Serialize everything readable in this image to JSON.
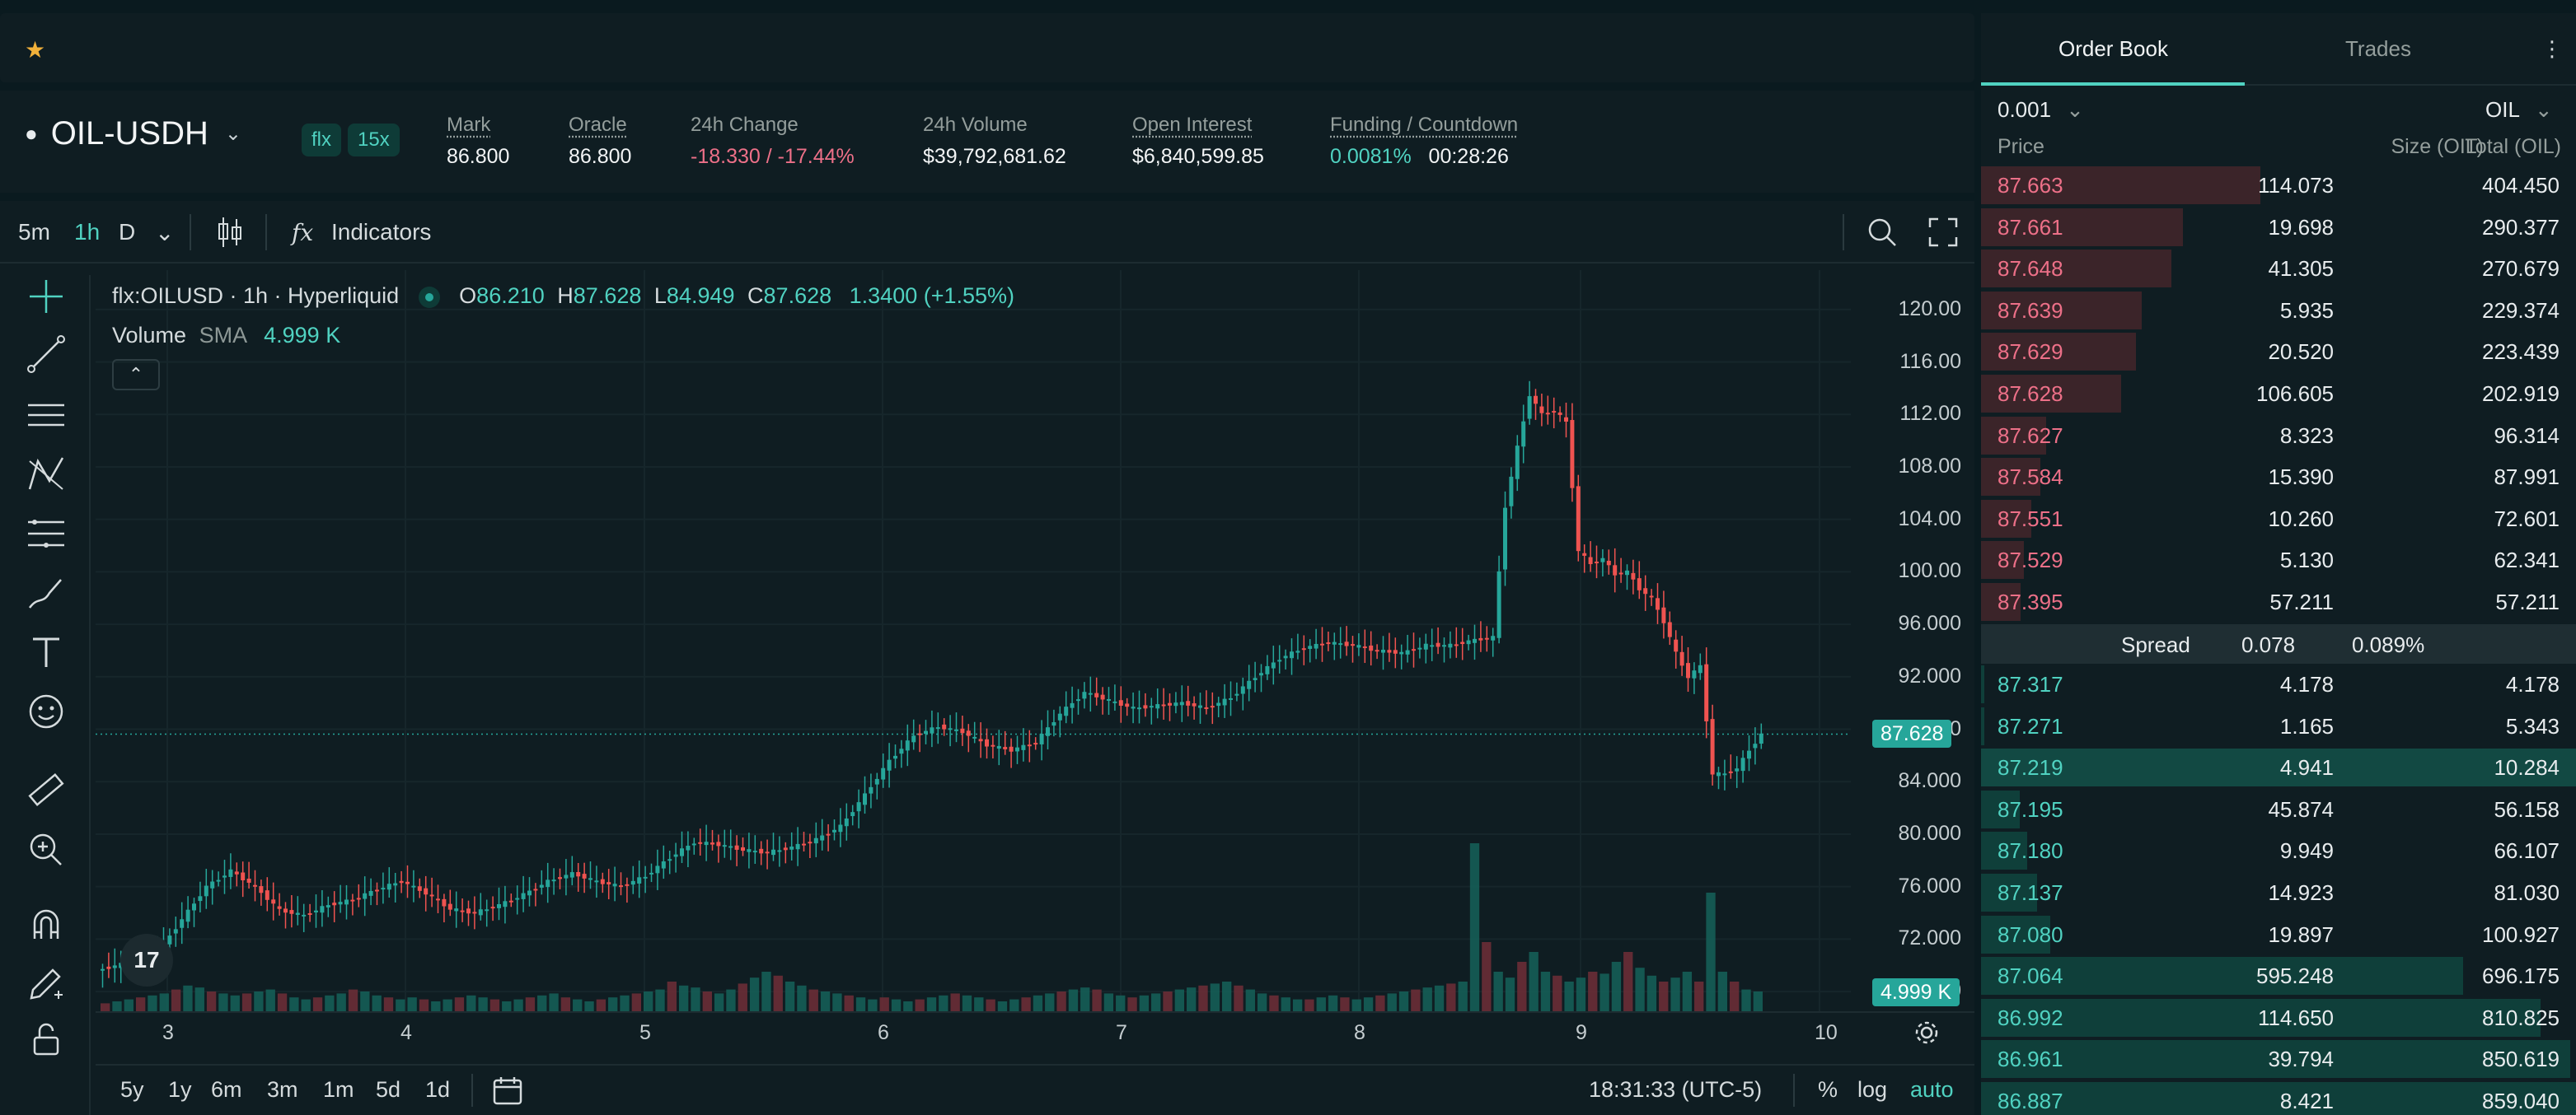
{
  "topbar": {
    "favorite_icon": "star-icon"
  },
  "market": {
    "pair": "OIL-USDH",
    "badges": [
      "flx",
      "15x"
    ],
    "stats": [
      {
        "label": "Mark",
        "value": "86.800",
        "underline": true
      },
      {
        "label": "Oracle",
        "value": "86.800",
        "underline": true
      },
      {
        "label": "24h Change",
        "value": "-18.330 / -17.44%",
        "underline": false
      },
      {
        "label": "24h Volume",
        "value": "$39,792,681.62",
        "underline": false
      },
      {
        "label": "Open Interest",
        "value": "$6,840,599.85",
        "underline": true
      },
      {
        "label": "Funding / Countdown",
        "value": "0.0081%",
        "value2": "00:28:26",
        "underline": true
      }
    ]
  },
  "chart_toolbar": {
    "intervals": [
      "5m",
      "1h",
      "D"
    ],
    "active_interval": "1h",
    "indicators_label": "Indicators"
  },
  "legend": {
    "symbol": "flx:OILUSD · 1h · Hyperliquid",
    "o_label": "O",
    "o": "86.210",
    "h_label": "H",
    "h": "87.628",
    "l_label": "L",
    "l": "84.949",
    "c_label": "C",
    "c": "87.628",
    "change": "1.3400 (+1.55%)",
    "volume_label": "Volume",
    "sma_label": "SMA",
    "sma_value": "4.999 K"
  },
  "chart_data": {
    "type": "candlestick",
    "y_ticks": [
      "120.00",
      "116.00",
      "112.00",
      "108.00",
      "104.00",
      "100.00",
      "96.000",
      "92.000",
      "88.000",
      "84.000",
      "80.000",
      "76.000",
      "72.000",
      "68.000"
    ],
    "ylim": [
      66.5,
      123
    ],
    "x_ticks": [
      "3",
      "4",
      "5",
      "6",
      "7",
      "8",
      "9",
      "10"
    ],
    "last_price": "87.628",
    "last_price_value": 87.628,
    "volume_tag": "4.999 K",
    "close_path": [
      [
        0,
        69.6
      ],
      [
        5,
        70.2
      ],
      [
        10,
        71.0
      ],
      [
        14,
        73.5
      ],
      [
        18,
        76.0
      ],
      [
        22,
        77.2
      ],
      [
        26,
        76.0
      ],
      [
        30,
        74.2
      ],
      [
        34,
        73.8
      ],
      [
        38,
        74.6
      ],
      [
        42,
        75.0
      ],
      [
        46,
        75.8
      ],
      [
        50,
        76.4
      ],
      [
        54,
        75.5
      ],
      [
        58,
        74.3
      ],
      [
        62,
        74.0
      ],
      [
        66,
        74.6
      ],
      [
        70,
        75.4
      ],
      [
        74,
        76.4
      ],
      [
        78,
        77.0
      ],
      [
        82,
        76.4
      ],
      [
        86,
        76.0
      ],
      [
        90,
        76.8
      ],
      [
        94,
        78.2
      ],
      [
        98,
        79.4
      ],
      [
        102,
        79.2
      ],
      [
        106,
        78.8
      ],
      [
        110,
        78.6
      ],
      [
        114,
        79.0
      ],
      [
        118,
        79.6
      ],
      [
        122,
        80.6
      ],
      [
        126,
        83.0
      ],
      [
        130,
        85.6
      ],
      [
        134,
        87.5
      ],
      [
        138,
        88.2
      ],
      [
        142,
        87.8
      ],
      [
        146,
        86.8
      ],
      [
        150,
        86.4
      ],
      [
        154,
        87.0
      ],
      [
        158,
        89.2
      ],
      [
        162,
        90.8
      ],
      [
        166,
        90.2
      ],
      [
        170,
        89.6
      ],
      [
        174,
        89.8
      ],
      [
        178,
        90.0
      ],
      [
        182,
        89.6
      ],
      [
        186,
        90.4
      ],
      [
        190,
        92.0
      ],
      [
        194,
        93.4
      ],
      [
        198,
        94.2
      ],
      [
        202,
        94.6
      ],
      [
        206,
        94.4
      ],
      [
        210,
        94.0
      ],
      [
        214,
        93.8
      ],
      [
        218,
        94.4
      ],
      [
        222,
        94.4
      ],
      [
        226,
        94.8
      ],
      [
        229,
        95.0
      ],
      [
        231,
        105.0
      ],
      [
        233,
        109.5
      ],
      [
        235,
        113.5
      ],
      [
        237,
        112.0
      ],
      [
        239,
        112.3
      ],
      [
        241,
        111.4
      ],
      [
        243,
        101.6
      ],
      [
        245,
        100.6
      ],
      [
        247,
        101.0
      ],
      [
        249,
        99.8
      ],
      [
        251,
        100.0
      ],
      [
        253,
        98.7
      ],
      [
        255,
        98.0
      ],
      [
        257,
        96.2
      ],
      [
        259,
        93.8
      ],
      [
        261,
        92.0
      ],
      [
        263,
        92.8
      ],
      [
        265,
        84.6
      ],
      [
        267,
        84.6
      ],
      [
        269,
        85.0
      ],
      [
        271,
        86.4
      ],
      [
        273,
        87.6
      ]
    ],
    "volume_bars_rel": [
      8,
      10,
      12,
      14,
      16,
      18,
      22,
      26,
      24,
      20,
      18,
      16,
      18,
      20,
      22,
      18,
      14,
      12,
      14,
      16,
      18,
      22,
      20,
      16,
      14,
      12,
      14,
      12,
      10,
      12,
      14,
      16,
      14,
      12,
      10,
      12,
      14,
      16,
      18,
      14,
      12,
      10,
      12,
      14,
      16,
      18,
      20,
      22,
      30,
      26,
      24,
      20,
      18,
      22,
      28,
      34,
      40,
      36,
      30,
      26,
      22,
      20,
      18,
      16,
      14,
      12,
      14,
      12,
      10,
      12,
      14,
      16,
      18,
      16,
      14,
      12,
      10,
      12,
      14,
      16,
      18,
      20,
      22,
      24,
      22,
      18,
      16,
      14,
      16,
      18,
      20,
      22,
      24,
      26,
      28,
      30,
      26,
      22,
      18,
      16,
      14,
      12,
      12,
      14,
      16,
      14,
      12,
      14,
      16,
      18,
      20,
      22,
      24,
      26,
      28,
      30,
      170,
      70,
      40,
      34,
      50,
      60,
      40,
      36,
      30,
      34,
      40,
      38,
      50,
      60,
      44,
      36,
      30,
      34,
      40,
      30,
      120,
      40,
      30,
      22,
      20
    ]
  },
  "left_tools": [
    "crosshair-icon",
    "trend-line-icon",
    "horizontal-lines-icon",
    "pattern-icon",
    "fib-icon",
    "brush-icon",
    "text-icon",
    "emoji-icon",
    "ruler-icon",
    "zoom-in-icon",
    "magnet-icon",
    "lock-draw-icon",
    "lock-icon"
  ],
  "bottom_bar": {
    "ranges": [
      "5y",
      "1y",
      "6m",
      "3m",
      "1m",
      "5d",
      "1d"
    ],
    "time": "18:31:33 (UTC-5)",
    "percent": "%",
    "log": "log",
    "auto": "auto"
  },
  "orderbook": {
    "tabs": [
      "Order Book",
      "Trades"
    ],
    "active_tab": "Order Book",
    "tick": "0.001",
    "unit": "OIL",
    "headers": [
      "Price",
      "Size (OIL)",
      "Total (OIL)"
    ],
    "asks": [
      {
        "price": "87.663",
        "size": "114.073",
        "total": "404.450",
        "depth": 0.47
      },
      {
        "price": "87.661",
        "size": "19.698",
        "total": "290.377",
        "depth": 0.34
      },
      {
        "price": "87.648",
        "size": "41.305",
        "total": "270.679",
        "depth": 0.32
      },
      {
        "price": "87.639",
        "size": "5.935",
        "total": "229.374",
        "depth": 0.27
      },
      {
        "price": "87.629",
        "size": "20.520",
        "total": "223.439",
        "depth": 0.26
      },
      {
        "price": "87.628",
        "size": "106.605",
        "total": "202.919",
        "depth": 0.235
      },
      {
        "price": "87.627",
        "size": "8.323",
        "total": "96.314",
        "depth": 0.11
      },
      {
        "price": "87.584",
        "size": "15.390",
        "total": "87.991",
        "depth": 0.1
      },
      {
        "price": "87.551",
        "size": "10.260",
        "total": "72.601",
        "depth": 0.085
      },
      {
        "price": "87.529",
        "size": "5.130",
        "total": "62.341",
        "depth": 0.072
      },
      {
        "price": "87.395",
        "size": "57.211",
        "total": "57.211",
        "depth": 0.066
      }
    ],
    "spread_label": "Spread",
    "spread_value": "0.078",
    "spread_pct": "0.089%",
    "bids": [
      {
        "price": "87.317",
        "size": "4.178",
        "total": "4.178",
        "depth": 0.005
      },
      {
        "price": "87.271",
        "size": "1.165",
        "total": "5.343",
        "depth": 0.006
      },
      {
        "price": "87.219",
        "size": "4.941",
        "total": "10.284",
        "depth": 1.0,
        "highlight": true
      },
      {
        "price": "87.195",
        "size": "45.874",
        "total": "56.158",
        "depth": 0.065
      },
      {
        "price": "87.180",
        "size": "9.949",
        "total": "66.107",
        "depth": 0.077
      },
      {
        "price": "87.137",
        "size": "14.923",
        "total": "81.030",
        "depth": 0.094
      },
      {
        "price": "87.080",
        "size": "19.897",
        "total": "100.927",
        "depth": 0.117
      },
      {
        "price": "87.064",
        "size": "595.248",
        "total": "696.175",
        "depth": 0.81
      },
      {
        "price": "86.992",
        "size": "114.650",
        "total": "810.825",
        "depth": 0.94
      },
      {
        "price": "86.961",
        "size": "39.794",
        "total": "850.619",
        "depth": 0.99
      },
      {
        "price": "86.887",
        "size": "8.421",
        "total": "859.040",
        "depth": 1.0
      }
    ],
    "more_icon": "more-vertical-icon"
  }
}
